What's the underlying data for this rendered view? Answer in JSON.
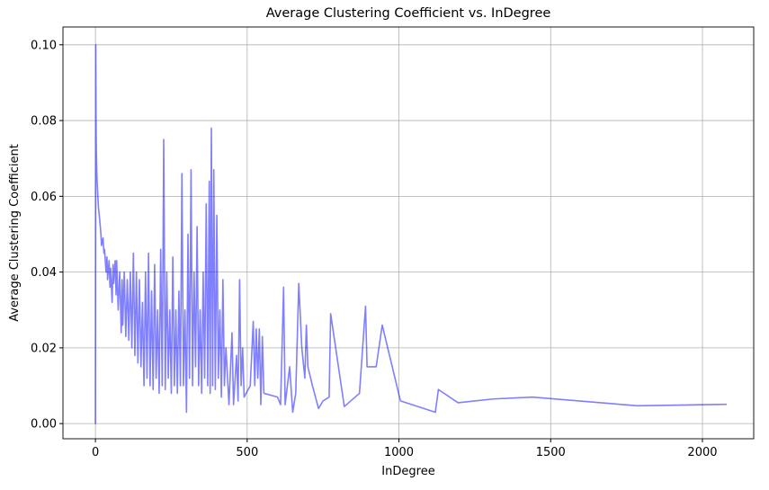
{
  "chart_data": {
    "type": "line",
    "title": "Average Clustering Coefficient vs. InDegree",
    "x_label": "InDegree",
    "y_label": "Average Clustering Coefficient",
    "x": [
      0,
      0,
      1,
      2,
      3,
      5,
      8,
      10,
      15,
      18,
      20,
      25,
      28,
      30,
      35,
      38,
      40,
      45,
      48,
      50,
      55,
      58,
      60,
      65,
      68,
      70,
      75,
      80,
      85,
      88,
      90,
      95,
      100,
      105,
      110,
      115,
      120,
      125,
      130,
      135,
      140,
      145,
      150,
      155,
      160,
      165,
      170,
      175,
      180,
      185,
      190,
      195,
      200,
      205,
      210,
      215,
      220,
      225,
      230,
      235,
      240,
      245,
      250,
      255,
      260,
      265,
      270,
      275,
      280,
      285,
      290,
      295,
      300,
      305,
      310,
      315,
      320,
      325,
      330,
      335,
      340,
      345,
      350,
      355,
      360,
      365,
      370,
      375,
      378,
      382,
      386,
      390,
      395,
      400,
      405,
      410,
      415,
      420,
      425,
      430,
      440,
      450,
      455,
      465,
      470,
      475,
      480,
      485,
      490,
      510,
      520,
      525,
      530,
      535,
      540,
      545,
      550,
      555,
      600,
      610,
      620,
      625,
      640,
      650,
      660,
      670,
      680,
      690,
      695,
      700,
      715,
      735,
      750,
      770,
      775,
      820,
      870,
      890,
      895,
      925,
      945,
      1005,
      1120,
      1130,
      1195,
      1310,
      1440,
      1785,
      2080
    ],
    "series": [
      {
        "name": "Average Clustering Coefficient",
        "color": "#0000ff",
        "alpha": 0.5,
        "values": [
          0.0105,
          0.0,
          0.1,
          0.08,
          0.072,
          0.065,
          0.06,
          0.057,
          0.053,
          0.05,
          0.047,
          0.049,
          0.045,
          0.046,
          0.04,
          0.044,
          0.038,
          0.043,
          0.036,
          0.041,
          0.032,
          0.042,
          0.037,
          0.043,
          0.034,
          0.043,
          0.03,
          0.04,
          0.024,
          0.038,
          0.026,
          0.04,
          0.023,
          0.038,
          0.022,
          0.04,
          0.02,
          0.045,
          0.018,
          0.04,
          0.016,
          0.038,
          0.015,
          0.032,
          0.01,
          0.04,
          0.012,
          0.045,
          0.01,
          0.035,
          0.009,
          0.042,
          0.012,
          0.03,
          0.008,
          0.046,
          0.01,
          0.075,
          0.009,
          0.04,
          0.012,
          0.03,
          0.008,
          0.044,
          0.01,
          0.03,
          0.008,
          0.035,
          0.01,
          0.066,
          0.01,
          0.03,
          0.003,
          0.05,
          0.012,
          0.067,
          0.01,
          0.04,
          0.015,
          0.052,
          0.01,
          0.03,
          0.008,
          0.04,
          0.012,
          0.058,
          0.01,
          0.064,
          0.008,
          0.078,
          0.01,
          0.067,
          0.009,
          0.055,
          0.012,
          0.03,
          0.007,
          0.038,
          0.01,
          0.02,
          0.005,
          0.024,
          0.005,
          0.018,
          0.006,
          0.038,
          0.01,
          0.02,
          0.007,
          0.01,
          0.027,
          0.01,
          0.025,
          0.012,
          0.025,
          0.005,
          0.023,
          0.008,
          0.007,
          0.005,
          0.036,
          0.005,
          0.015,
          0.003,
          0.008,
          0.037,
          0.02,
          0.012,
          0.026,
          0.015,
          0.01,
          0.004,
          0.006,
          0.007,
          0.029,
          0.0045,
          0.008,
          0.031,
          0.015,
          0.015,
          0.026,
          0.006,
          0.003,
          0.009,
          0.0055,
          0.0065,
          0.007,
          0.0047,
          0.0051
        ]
      }
    ],
    "xlim": [
      -107,
      2169
    ],
    "ylim": [
      -0.004,
      0.1047
    ],
    "xticks": [
      0,
      500,
      1000,
      1500,
      2000
    ],
    "yticks": [
      {
        "value": 0,
        "label": "0.00"
      },
      {
        "value": 0.02,
        "label": "0.02"
      },
      {
        "value": 0.04,
        "label": "0.04"
      },
      {
        "value": 0.06,
        "label": "0.06"
      },
      {
        "value": 0.08,
        "label": "0.08"
      },
      {
        "value": 0.1,
        "label": "0.10"
      }
    ],
    "grid": true
  }
}
